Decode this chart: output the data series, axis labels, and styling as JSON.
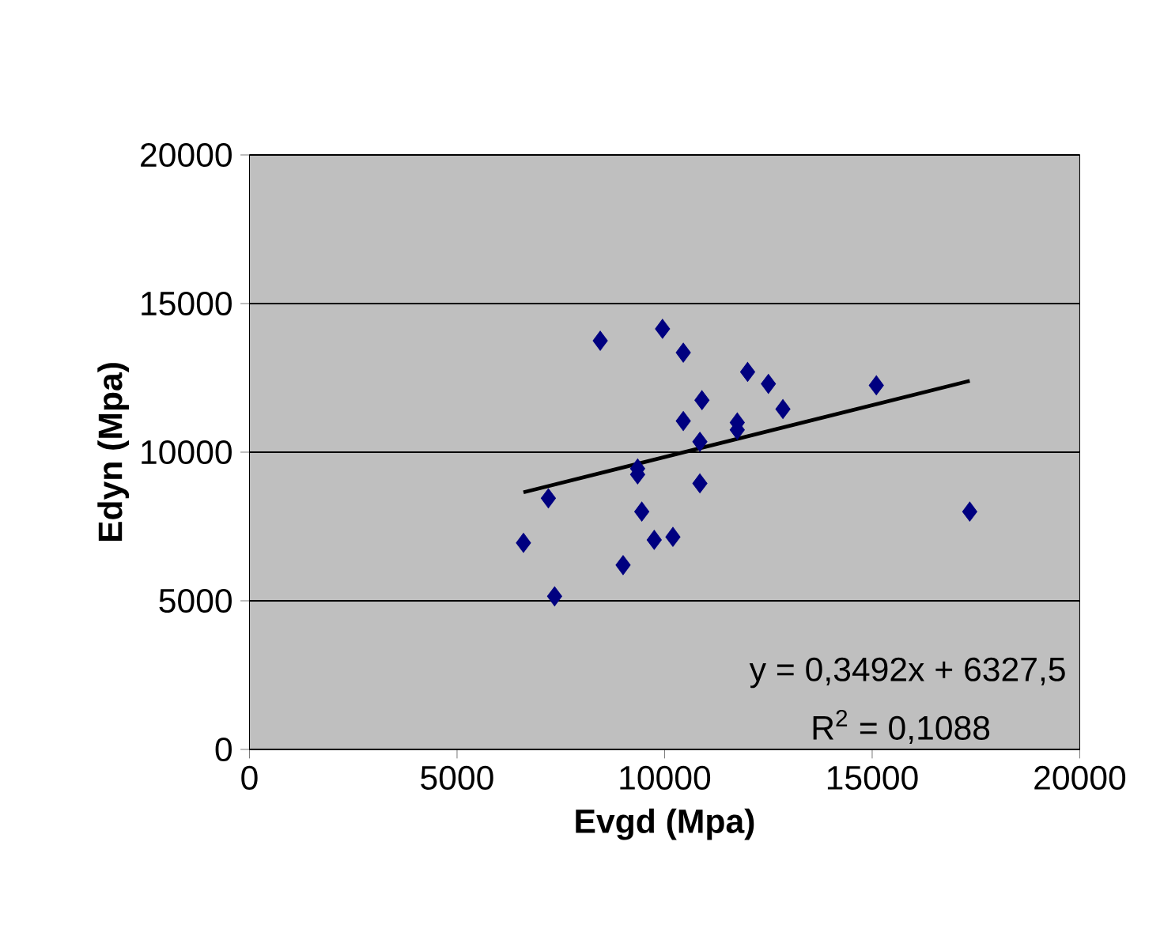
{
  "chart_data": {
    "type": "scatter",
    "xlabel": "Evgd (Mpa)",
    "ylabel": "Edyn (Mpa)",
    "xlim": [
      0,
      20000
    ],
    "ylim": [
      0,
      20000
    ],
    "xticks": [
      0,
      5000,
      10000,
      15000,
      20000
    ],
    "yticks": [
      0,
      5000,
      10000,
      15000,
      20000
    ],
    "grid": "y",
    "marker": "diamond",
    "series": [
      {
        "color": "#000080",
        "x": [
          8450,
          9950,
          10450,
          12000,
          12500,
          15100,
          10900,
          12850,
          10450,
          11750,
          11750,
          10850,
          9350,
          9350,
          7200,
          10850,
          17350,
          9450,
          6600,
          9750,
          10200,
          9000,
          7350
        ],
        "values": [
          13750,
          14150,
          13350,
          12700,
          12300,
          12250,
          11750,
          11450,
          11050,
          11000,
          10750,
          10350,
          9450,
          9250,
          8450,
          8950,
          8000,
          8000,
          6950,
          7050,
          7150,
          6200,
          5150
        ]
      },
      {
        "type": "line",
        "color": "#000000",
        "marker": "none",
        "x": [
          6600,
          17350
        ],
        "values": [
          8650,
          12400
        ]
      }
    ],
    "annotations": [
      "y = 0,3492x + 6327,5",
      "R$^{2}$ = 0,1088"
    ]
  }
}
